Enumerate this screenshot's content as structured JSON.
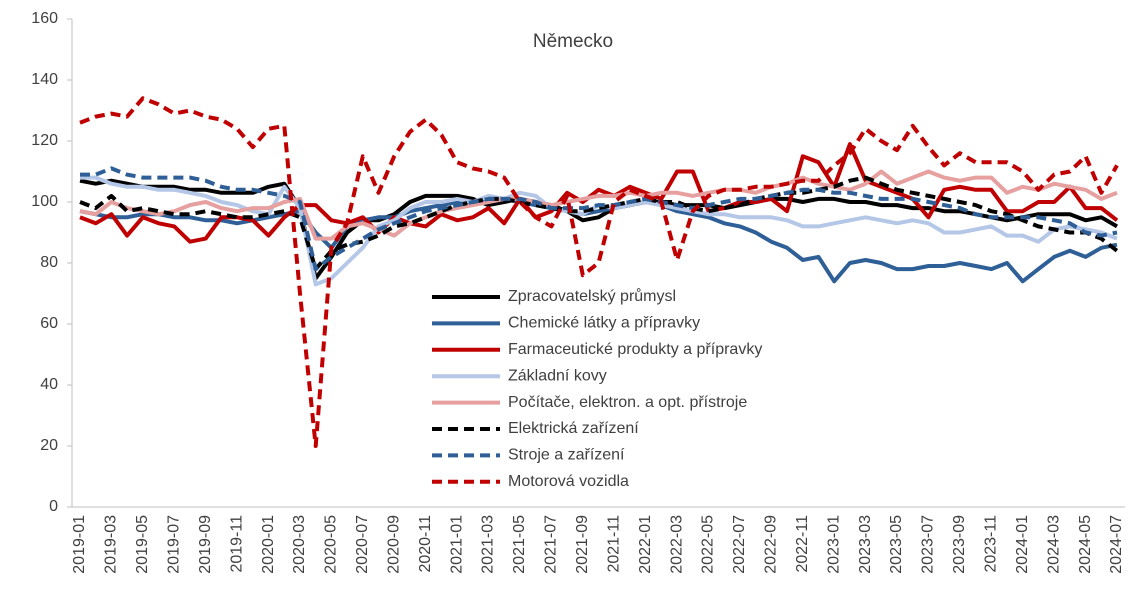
{
  "chart_data": {
    "type": "line",
    "title": "Německo",
    "categories": [
      "2019-01",
      null,
      "2019-03",
      null,
      "2019-05",
      null,
      "2019-07",
      null,
      "2019-09",
      null,
      "2019-11",
      null,
      "2020-01",
      null,
      "2020-03",
      null,
      "2020-05",
      null,
      "2020-07",
      null,
      "2020-09",
      null,
      "2020-11",
      null,
      "2021-01",
      null,
      "2021-03",
      null,
      "2021-05",
      null,
      "2021-07",
      null,
      "2021-09",
      null,
      "2021-11",
      null,
      "2022-01",
      null,
      "2022-03",
      null,
      "2022-05",
      null,
      "2022-07",
      null,
      "2022-09",
      null,
      "2022-11",
      null,
      "2023-01",
      null,
      "2023-03",
      null,
      "2023-05",
      null,
      "2023-07",
      null,
      "2023-09",
      null,
      "2023-11",
      null,
      "2024-01",
      null,
      "2024-03",
      null,
      "2024-05",
      null,
      "2024-07"
    ],
    "ylim": [
      0,
      160
    ],
    "yticks": [
      0,
      20,
      40,
      60,
      80,
      100,
      120,
      140,
      160
    ],
    "series": [
      {
        "name": "Zpracovatelský průmysl",
        "color": "#000000",
        "dashed": false,
        "values": [
          107,
          106,
          107,
          106,
          105,
          105,
          105,
          104,
          104,
          103,
          103,
          103,
          105,
          106,
          98,
          75,
          82,
          90,
          94,
          94,
          96,
          100,
          102,
          102,
          102,
          101,
          99,
          100,
          101,
          100,
          99,
          97,
          94,
          95,
          98,
          99,
          100,
          100,
          99,
          99,
          99,
          98,
          99,
          100,
          101,
          101,
          100,
          101,
          101,
          100,
          100,
          99,
          99,
          98,
          98,
          97,
          97,
          96,
          95,
          94,
          95,
          96,
          96,
          96,
          94,
          95,
          92
        ]
      },
      {
        "name": "Chemické látky a přípravky",
        "color": "#2f5f97",
        "dashed": false,
        "values": [
          97,
          96,
          95,
          95,
          96,
          96,
          95,
          95,
          94,
          94,
          93,
          94,
          95,
          96,
          97,
          90,
          85,
          92,
          94,
          95,
          95,
          97,
          98,
          99,
          100,
          100,
          100,
          101,
          100,
          99,
          98,
          97,
          96,
          97,
          98,
          99,
          100,
          99,
          97,
          96,
          95,
          93,
          92,
          90,
          87,
          85,
          81,
          82,
          74,
          80,
          81,
          80,
          78,
          78,
          79,
          79,
          80,
          79,
          78,
          80,
          74,
          78,
          82,
          84,
          82,
          85,
          86
        ]
      },
      {
        "name": "Farmaceutické produkty a přípravky",
        "color": "#c00000",
        "dashed": false,
        "values": [
          95,
          93,
          96,
          89,
          95,
          93,
          92,
          87,
          88,
          95,
          95,
          94,
          89,
          95,
          99,
          99,
          94,
          93,
          95,
          90,
          95,
          93,
          92,
          96,
          94,
          95,
          98,
          93,
          101,
          95,
          97,
          103,
          100,
          104,
          102,
          105,
          103,
          101,
          110,
          110,
          97,
          98,
          100,
          100,
          101,
          97,
          115,
          113,
          105,
          119,
          107,
          105,
          103,
          101,
          95,
          104,
          105,
          104,
          104,
          97,
          97,
          100,
          100,
          105,
          98,
          98,
          94
        ]
      },
      {
        "name": "Základní kovy",
        "color": "#b4c7e7",
        "dashed": false,
        "values": [
          108,
          108,
          106,
          105,
          105,
          104,
          104,
          103,
          102,
          100,
          99,
          97,
          96,
          105,
          98,
          73,
          75,
          80,
          85,
          92,
          94,
          98,
          100,
          100,
          101,
          100,
          102,
          101,
          103,
          102,
          98,
          97,
          96,
          99,
          98,
          99,
          100,
          99,
          98,
          97,
          96,
          96,
          95,
          95,
          95,
          94,
          92,
          92,
          93,
          94,
          95,
          94,
          93,
          94,
          93,
          90,
          90,
          91,
          92,
          89,
          89,
          87,
          91,
          92,
          91,
          90,
          88
        ]
      },
      {
        "name": "Počítače, elektron. a opt. přístroje",
        "color": "#e6a0a0",
        "dashed": false,
        "values": [
          97,
          96,
          100,
          98,
          97,
          96,
          97,
          99,
          100,
          98,
          97,
          98,
          98,
          100,
          101,
          88,
          88,
          92,
          93,
          91,
          89,
          93,
          95,
          97,
          98,
          99,
          100,
          101,
          101,
          100,
          99,
          100,
          101,
          102,
          102,
          103,
          102,
          103,
          103,
          102,
          103,
          104,
          104,
          103,
          105,
          106,
          108,
          106,
          105,
          104,
          106,
          110,
          106,
          108,
          110,
          108,
          107,
          108,
          108,
          103,
          105,
          104,
          106,
          105,
          104,
          101,
          103
        ]
      },
      {
        "name": "Elektrická zařízení",
        "color": "#000000",
        "dashed": true,
        "values": [
          100,
          98,
          102,
          97,
          98,
          97,
          96,
          96,
          97,
          96,
          95,
          95,
          96,
          97,
          95,
          78,
          84,
          86,
          87,
          89,
          92,
          93,
          95,
          97,
          99,
          100,
          101,
          101,
          100,
          99,
          98,
          97,
          97,
          98,
          99,
          100,
          101,
          100,
          100,
          98,
          97,
          98,
          99,
          101,
          102,
          103,
          103,
          104,
          105,
          107,
          108,
          106,
          104,
          103,
          102,
          101,
          100,
          99,
          97,
          96,
          94,
          92,
          91,
          90,
          90,
          88,
          84
        ]
      },
      {
        "name": "Stroje a zařízení",
        "color": "#2f5f97",
        "dashed": true,
        "values": [
          109,
          109,
          111,
          109,
          108,
          108,
          108,
          108,
          107,
          105,
          104,
          104,
          103,
          102,
          100,
          78,
          82,
          85,
          88,
          91,
          93,
          95,
          97,
          98,
          99,
          100,
          101,
          101,
          101,
          100,
          98,
          98,
          98,
          99,
          99,
          100,
          101,
          100,
          99,
          98,
          99,
          100,
          101,
          101,
          102,
          103,
          104,
          104,
          103,
          103,
          102,
          101,
          101,
          101,
          100,
          99,
          98,
          96,
          95,
          95,
          95,
          95,
          94,
          93,
          90,
          89,
          90
        ]
      },
      {
        "name": "Motorová vozidla",
        "color": "#c00000",
        "dashed": true,
        "values": [
          126,
          128,
          129,
          128,
          134,
          132,
          129,
          130,
          128,
          127,
          124,
          118,
          124,
          125,
          70,
          20,
          85,
          93,
          115,
          103,
          115,
          123,
          127,
          122,
          113,
          111,
          110,
          108,
          100,
          95,
          92,
          102,
          76,
          80,
          100,
          104,
          102,
          100,
          81,
          97,
          102,
          104,
          104,
          105,
          105,
          106,
          107,
          107,
          112,
          116,
          124,
          120,
          117,
          125,
          118,
          112,
          116,
          113,
          113,
          113,
          110,
          104,
          109,
          110,
          115,
          103,
          112
        ]
      }
    ]
  }
}
